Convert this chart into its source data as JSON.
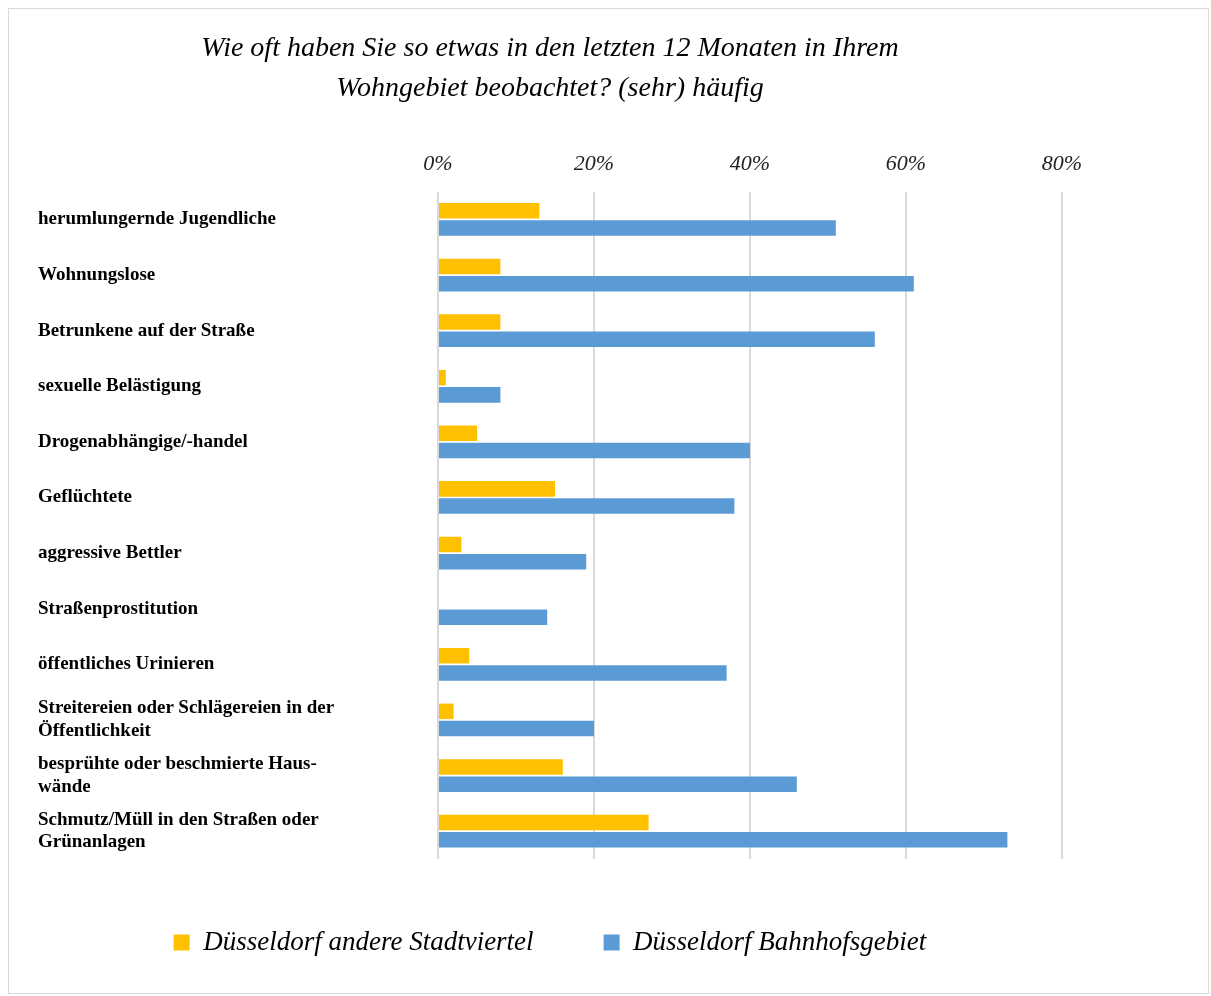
{
  "chart_data": {
    "type": "bar",
    "orientation": "horizontal",
    "title": "Wie oft haben Sie so etwas in den letzten 12 Monaten in Ihrem Wohngebiet beobachtet? (sehr) häufig",
    "categories": [
      "herumlungernde Jugendliche",
      "Wohnungslose",
      "Betrunkene auf der Straße",
      "sexuelle Belästigung",
      "Drogenabhängige/-handel",
      "Geflüchtete",
      "aggressive Bettler",
      "Straßenprostitution",
      "öffentliches Urinieren",
      "Streitereien oder Schlägereien in der Öffentlichkeit",
      "besprühte oder beschmierte Haus-wände",
      "Schmutz/Müll in den Straßen oder Grünanlagen"
    ],
    "series": [
      {
        "name": "Düsseldorf andere Stadtviertel",
        "color": "#ffc000",
        "values": [
          13,
          8,
          8,
          1,
          5,
          15,
          3,
          0,
          4,
          2,
          16,
          27
        ]
      },
      {
        "name": "Düsseldorf Bahnhofsgebiet",
        "color": "#5b9bd5",
        "values": [
          51,
          61,
          56,
          8,
          40,
          38,
          19,
          14,
          37,
          20,
          46,
          73
        ]
      }
    ],
    "xlim": [
      0,
      80
    ],
    "xticks": [
      {
        "value": 0,
        "label": "0%"
      },
      {
        "value": 20,
        "label": "20%"
      },
      {
        "value": 40,
        "label": "40%"
      },
      {
        "value": 60,
        "label": "60%"
      },
      {
        "value": 80,
        "label": "80%"
      }
    ],
    "grid": "x",
    "legend": "bottom"
  }
}
